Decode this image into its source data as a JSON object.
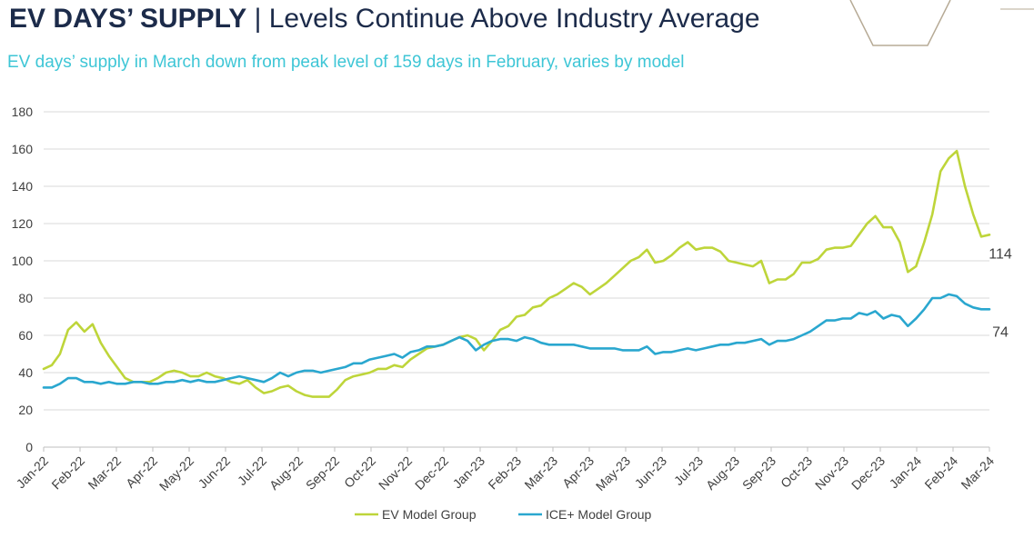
{
  "header": {
    "title_bold": "EV DAYS’ SUPPLY",
    "title_sep": " | ",
    "title_rest": "Levels Continue Above Industry Average",
    "subtitle": "EV days’ supply in March down from peak level of 159 days in February, varies by model"
  },
  "colors": {
    "ev": "#bed53a",
    "ice": "#2aa7cf",
    "title": "#1c2b4a",
    "subtitle": "#3ec6d6",
    "grid": "#d9d9d9",
    "decoration": "#b7ab96"
  },
  "chart_data": {
    "type": "line",
    "title": "",
    "xlabel": "",
    "ylabel": "",
    "ylim": [
      0,
      180
    ],
    "yticks": [
      0,
      20,
      40,
      60,
      80,
      100,
      120,
      140,
      160,
      180
    ],
    "grid": true,
    "legend": "bottom-center",
    "x_tick_labels": [
      "Jan-22",
      "Feb-22",
      "Mar-22",
      "Apr-22",
      "May-22",
      "Jun-22",
      "Jul-22",
      "Aug-22",
      "Sep-22",
      "Oct-22",
      "Nov-22",
      "Dec-22",
      "Jan-23",
      "Feb-23",
      "Mar-23",
      "Apr-23",
      "May-23",
      "Jun-23",
      "Jul-23",
      "Aug-23",
      "Sep-23",
      "Oct-23",
      "Nov-23",
      "Dec-23",
      "Jan-24",
      "Feb-24",
      "Mar-24"
    ],
    "series": [
      {
        "name": "EV Model Group",
        "color": "#bed53a",
        "end_label": "114",
        "values": [
          42,
          44,
          50,
          63,
          67,
          62,
          66,
          56,
          49,
          43,
          37,
          35,
          35,
          35,
          37,
          40,
          41,
          40,
          38,
          38,
          40,
          38,
          37,
          35,
          34,
          36,
          32,
          29,
          30,
          32,
          33,
          30,
          28,
          27,
          27,
          27,
          31,
          36,
          38,
          39,
          40,
          42,
          42,
          44,
          43,
          47,
          50,
          53,
          54,
          55,
          57,
          59,
          60,
          58,
          52,
          57,
          63,
          65,
          70,
          71,
          75,
          76,
          80,
          82,
          85,
          88,
          86,
          82,
          85,
          88,
          92,
          96,
          100,
          102,
          106,
          99,
          100,
          103,
          107,
          110,
          106,
          107,
          107,
          105,
          100,
          99,
          98,
          97,
          100,
          88,
          90,
          90,
          93,
          99,
          99,
          101,
          106,
          107,
          107,
          108,
          114,
          120,
          124,
          118,
          118,
          110,
          94,
          97,
          110,
          125,
          148,
          155,
          159,
          140,
          125,
          113,
          114
        ]
      },
      {
        "name": "ICE+ Model Group",
        "color": "#2aa7cf",
        "end_label": "74",
        "values": [
          32,
          32,
          34,
          37,
          37,
          35,
          35,
          34,
          35,
          34,
          34,
          35,
          35,
          34,
          34,
          35,
          35,
          36,
          35,
          36,
          35,
          35,
          36,
          37,
          38,
          37,
          36,
          35,
          37,
          40,
          38,
          40,
          41,
          41,
          40,
          41,
          42,
          43,
          45,
          45,
          47,
          48,
          49,
          50,
          48,
          51,
          52,
          54,
          54,
          55,
          57,
          59,
          57,
          52,
          55,
          57,
          58,
          58,
          57,
          59,
          58,
          56,
          55,
          55,
          55,
          55,
          54,
          53,
          53,
          53,
          53,
          52,
          52,
          52,
          54,
          50,
          51,
          51,
          52,
          53,
          52,
          53,
          54,
          55,
          55,
          56,
          56,
          57,
          58,
          55,
          57,
          57,
          58,
          60,
          62,
          65,
          68,
          68,
          69,
          69,
          72,
          71,
          73,
          69,
          71,
          70,
          65,
          69,
          74,
          80,
          80,
          82,
          81,
          77,
          75,
          74,
          74
        ]
      }
    ]
  }
}
